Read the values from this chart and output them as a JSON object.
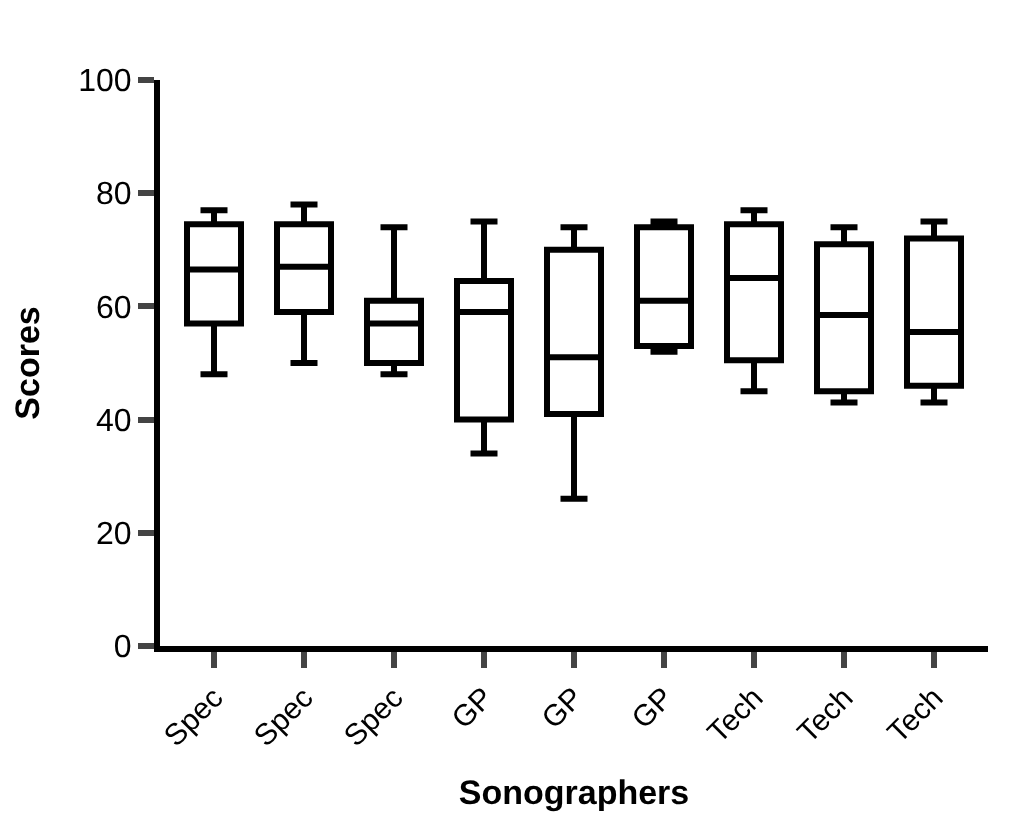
{
  "chart_data": {
    "type": "box",
    "xlabel": "Sonographers",
    "ylabel": "Scores",
    "categories": [
      "Spec",
      "Spec",
      "Spec",
      "GP",
      "GP",
      "GP",
      "Tech",
      "Tech",
      "Tech"
    ],
    "color": "#000000",
    "ylim": [
      0,
      100
    ],
    "yticks": [
      0,
      20,
      40,
      60,
      80,
      100
    ],
    "boxes": [
      {
        "low": 48,
        "q1": 57,
        "median": 66.5,
        "q3": 74.5,
        "high": 77
      },
      {
        "low": 50,
        "q1": 59,
        "median": 67,
        "q3": 74.5,
        "high": 78
      },
      {
        "low": 48,
        "q1": 50,
        "median": 57,
        "q3": 61,
        "high": 74
      },
      {
        "low": 34,
        "q1": 40,
        "median": 59,
        "q3": 64.5,
        "high": 75
      },
      {
        "low": 26,
        "q1": 41,
        "median": 51,
        "q3": 70,
        "high": 74
      },
      {
        "low": 52,
        "q1": 53,
        "median": 61,
        "q3": 74,
        "high": 75
      },
      {
        "low": 45,
        "q1": 50.5,
        "median": 65,
        "q3": 74.5,
        "high": 77
      },
      {
        "low": 43,
        "q1": 45,
        "median": 58.5,
        "q3": 71,
        "high": 74
      },
      {
        "low": 43,
        "q1": 46,
        "median": 55.5,
        "q3": 72,
        "high": 75
      }
    ]
  }
}
